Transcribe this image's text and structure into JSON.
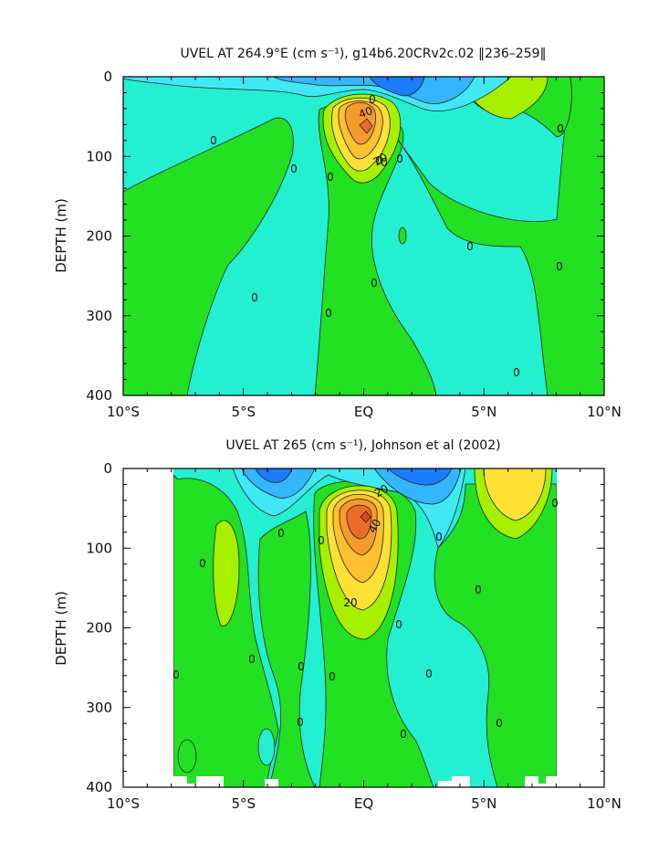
{
  "chart_data": [
    {
      "type": "heatmap",
      "title": "UVEL AT 264.9°E (cm s⁻¹), g14b6.20CRv2c.02 ‖236–259‖",
      "xlabel": "",
      "ylabel": "DEPTH (m)",
      "xlim": [
        -10,
        10
      ],
      "ylim": [
        400,
        0
      ],
      "x_tick_labels": [
        "10°S",
        "5°S",
        "EQ",
        "5°N",
        "10°N"
      ],
      "x_tick_values": [
        -10,
        -5,
        0,
        5,
        10
      ],
      "y_tick_labels": [
        "0",
        "100",
        "200",
        "300",
        "400"
      ],
      "y_tick_values": [
        0,
        100,
        200,
        300,
        400
      ],
      "contour_labels": [
        "0",
        "0",
        "0",
        "0",
        "0",
        "0",
        "0",
        "0",
        "0",
        "0",
        "0",
        "0",
        "0",
        "0",
        "40",
        "20"
      ],
      "max_core": {
        "lat": 0,
        "depth": 65,
        "label": "40"
      }
    },
    {
      "type": "heatmap",
      "title": "UVEL AT 265 (cm s⁻¹), Johnson et al (2002)",
      "xlabel": "",
      "ylabel": "DEPTH (m)",
      "xlim": [
        -10,
        10
      ],
      "ylim": [
        400,
        0
      ],
      "x_tick_labels": [
        "10°S",
        "5°S",
        "EQ",
        "5°N",
        "10°N"
      ],
      "x_tick_values": [
        -10,
        -5,
        0,
        5,
        10
      ],
      "y_tick_labels": [
        "0",
        "100",
        "200",
        "300",
        "400"
      ],
      "y_tick_values": [
        0,
        100,
        200,
        300,
        400
      ],
      "contour_labels": [
        "0",
        "0",
        "0",
        "0",
        "0",
        "0",
        "0",
        "0",
        "0",
        "0",
        "0",
        "0",
        "0",
        "0",
        "0",
        "40",
        "20",
        "20"
      ],
      "max_core": {
        "lat": 0,
        "depth": 70,
        "label": "40"
      }
    }
  ],
  "colors": {
    "deep_blue": "#1a7cff",
    "mid_blue": "#33b6ff",
    "light_blue": "#40e8f5",
    "cyan": "#23f0d0",
    "green": "#22e022",
    "lime": "#a6f000",
    "yellow": "#ffe135",
    "gold": "#ffc030",
    "orange": "#f79a2d",
    "red_orange": "#ec6b28"
  }
}
